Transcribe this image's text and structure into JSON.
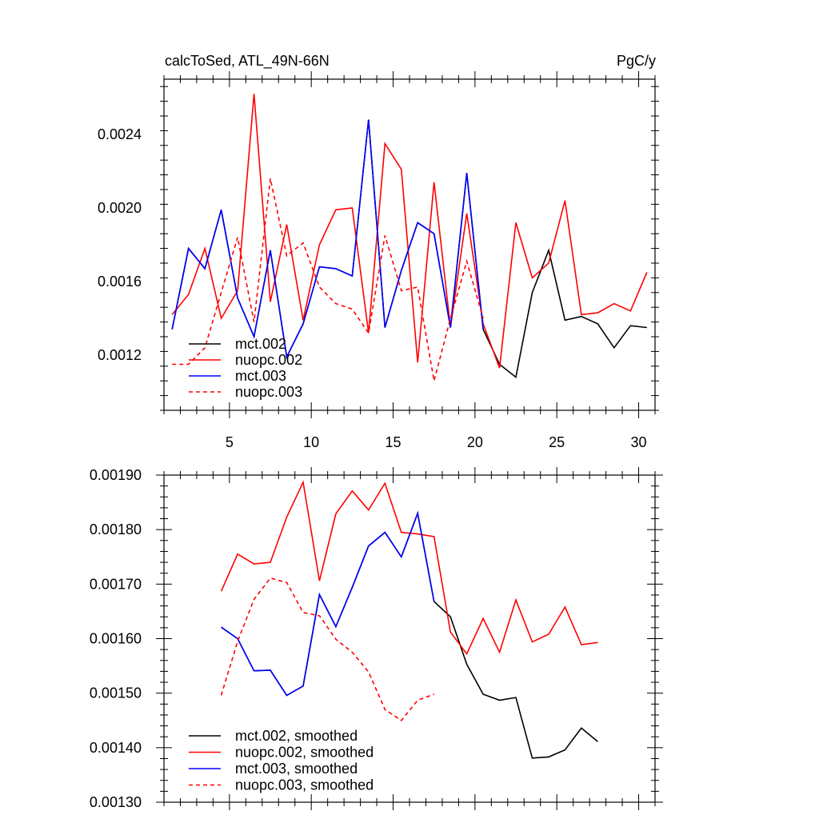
{
  "chart_data": [
    {
      "type": "line",
      "title_left": "calcToSed, ATL_49N-66N",
      "title_right": "PgC/y",
      "xlabel": "",
      "ylabel": "",
      "xlim": [
        1,
        31
      ],
      "ylim": [
        0.0009,
        0.0027
      ],
      "x_ticks": [
        5,
        10,
        15,
        20,
        25,
        30
      ],
      "x_tick_labels": [
        "5",
        "10",
        "15",
        "20",
        "25",
        "30"
      ],
      "y_ticks": [
        0.0012,
        0.0016,
        0.002,
        0.0024
      ],
      "y_tick_labels": [
        "0.0012",
        "0.0016",
        "0.0020",
        "0.0024"
      ],
      "legend_position": "bottom-left",
      "series": [
        {
          "name": "mct.002",
          "color": "#000000",
          "dash": "solid",
          "x": [
            1.5,
            2.5,
            3.5,
            4.5,
            5.5,
            6.5,
            7.5,
            8.5,
            9.5,
            10.5,
            11.5,
            12.5,
            13.5,
            14.5,
            15.5,
            16.5,
            17.5,
            18.5,
            19.5,
            20.5,
            21.5,
            22.5,
            23.5,
            24.5,
            25.5,
            26.5,
            27.5,
            28.5,
            29.5,
            30.5
          ],
          "values": [
            0.00134,
            0.00178,
            0.00167,
            0.00199,
            0.00151,
            0.0013,
            0.00177,
            0.00119,
            0.00137,
            0.00168,
            0.00167,
            0.00163,
            0.00248,
            0.00135,
            0.00166,
            0.00192,
            0.00186,
            0.00135,
            0.00219,
            0.00134,
            0.00115,
            0.00108,
            0.00154,
            0.00177,
            0.00139,
            0.00141,
            0.00137,
            0.00124,
            0.00136,
            0.00135
          ]
        },
        {
          "name": "nuopc.002",
          "color": "#ff0000",
          "dash": "solid",
          "x": [
            1.5,
            2.5,
            3.5,
            4.5,
            5.5,
            6.5,
            7.5,
            8.5,
            9.5,
            10.5,
            11.5,
            12.5,
            13.5,
            14.5,
            15.5,
            16.5,
            17.5,
            18.5,
            19.5,
            20.5,
            21.5,
            22.5,
            23.5,
            24.5,
            25.5,
            26.5,
            27.5,
            28.5,
            29.5,
            30.5
          ],
          "values": [
            0.00142,
            0.00153,
            0.00178,
            0.0014,
            0.00155,
            0.00262,
            0.00149,
            0.00191,
            0.00139,
            0.0018,
            0.00199,
            0.002,
            0.00132,
            0.00235,
            0.00221,
            0.00116,
            0.00214,
            0.00135,
            0.00197,
            0.00137,
            0.00113,
            0.00192,
            0.00162,
            0.0017,
            0.00204,
            0.00142,
            0.00143,
            0.00148,
            0.00144,
            0.00165
          ]
        },
        {
          "name": "mct.003",
          "color": "#0000ff",
          "dash": "solid",
          "x": [
            1.5,
            2.5,
            3.5,
            4.5,
            5.5,
            6.5,
            7.5,
            8.5,
            9.5,
            10.5,
            11.5,
            12.5,
            13.5,
            14.5,
            15.5,
            16.5,
            17.5,
            18.5,
            19.5,
            20.5
          ],
          "values": [
            0.00134,
            0.00178,
            0.00167,
            0.00199,
            0.00151,
            0.0013,
            0.00177,
            0.00119,
            0.00137,
            0.00168,
            0.00167,
            0.00163,
            0.00248,
            0.00135,
            0.00166,
            0.00192,
            0.00186,
            0.00135,
            0.00219,
            0.00134
          ]
        },
        {
          "name": "nuopc.003",
          "color": "#ff0000",
          "dash": "dashed",
          "x": [
            1.5,
            2.5,
            3.5,
            4.5,
            5.5,
            6.5,
            7.5,
            8.5,
            9.5,
            10.5,
            11.5,
            12.5,
            13.5,
            14.5,
            15.5,
            16.5,
            17.5,
            18.5,
            19.5,
            20.5
          ],
          "values": [
            0.00115,
            0.00115,
            0.00124,
            0.00154,
            0.00184,
            0.00138,
            0.00216,
            0.00174,
            0.00181,
            0.00157,
            0.00148,
            0.00145,
            0.00132,
            0.00185,
            0.00155,
            0.00157,
            0.00106,
            0.0014,
            0.00171,
            0.0014
          ]
        }
      ]
    },
    {
      "type": "line",
      "title": "",
      "xlabel": "",
      "ylabel": "",
      "xlim": [
        1,
        31
      ],
      "ylim": [
        0.0013,
        0.0019
      ],
      "x_ticks": [
        5,
        10,
        15,
        20,
        25,
        30
      ],
      "x_tick_labels": [],
      "y_ticks": [
        0.0013,
        0.0014,
        0.0015,
        0.0016,
        0.0017,
        0.0018,
        0.0019
      ],
      "y_tick_labels": [
        "0.00130",
        "0.00140",
        "0.00150",
        "0.00160",
        "0.00170",
        "0.00180",
        "0.00190"
      ],
      "legend_position": "bottom-left",
      "series": [
        {
          "name": "mct.002, smoothed",
          "color": "#000000",
          "dash": "solid",
          "x": [
            4.5,
            5.5,
            6.5,
            7.5,
            8.5,
            9.5,
            10.5,
            11.5,
            12.5,
            13.5,
            14.5,
            15.5,
            16.5,
            17.5,
            18.5,
            19.5,
            20.5,
            21.5,
            22.5,
            23.5,
            24.5,
            25.5,
            26.5,
            27.5
          ],
          "values": [
            0.001621,
            0.0016,
            0.001541,
            0.001542,
            0.001496,
            0.001513,
            0.001681,
            0.001622,
            0.001694,
            0.00177,
            0.001795,
            0.00175,
            0.00183,
            0.001668,
            0.00164,
            0.001553,
            0.001498,
            0.001487,
            0.001492,
            0.001381,
            0.001383,
            0.001396,
            0.001436,
            0.001411
          ]
        },
        {
          "name": "nuopc.002, smoothed",
          "color": "#ff0000",
          "dash": "solid",
          "x": [
            4.5,
            5.5,
            6.5,
            7.5,
            8.5,
            9.5,
            10.5,
            11.5,
            12.5,
            13.5,
            14.5,
            15.5,
            16.5,
            17.5,
            18.5,
            19.5,
            20.5,
            21.5,
            22.5,
            23.5,
            24.5,
            25.5,
            26.5,
            27.5
          ],
          "values": [
            0.001687,
            0.001755,
            0.001737,
            0.00174,
            0.001823,
            0.001887,
            0.001706,
            0.001829,
            0.001871,
            0.001836,
            0.001885,
            0.001795,
            0.001792,
            0.001787,
            0.001612,
            0.001572,
            0.001637,
            0.001575,
            0.001671,
            0.001594,
            0.001608,
            0.001658,
            0.001589,
            0.001593
          ]
        },
        {
          "name": "mct.003, smoothed",
          "color": "#0000ff",
          "dash": "solid",
          "x": [
            4.5,
            5.5,
            6.5,
            7.5,
            8.5,
            9.5,
            10.5,
            11.5,
            12.5,
            13.5,
            14.5,
            15.5,
            16.5,
            17.5
          ],
          "values": [
            0.001621,
            0.0016,
            0.001541,
            0.001542,
            0.001496,
            0.001513,
            0.001681,
            0.001622,
            0.001694,
            0.00177,
            0.001795,
            0.00175,
            0.00183,
            0.001668
          ]
        },
        {
          "name": "nuopc.003, smoothed",
          "color": "#ff0000",
          "dash": "dashed",
          "x": [
            4.5,
            5.5,
            6.5,
            7.5,
            8.5,
            9.5,
            10.5,
            11.5,
            12.5,
            13.5,
            14.5,
            15.5,
            16.5,
            17.5
          ],
          "values": [
            0.001496,
            0.001595,
            0.001672,
            0.001711,
            0.001703,
            0.001648,
            0.001642,
            0.001599,
            0.001575,
            0.001539,
            0.00147,
            0.00145,
            0.001487,
            0.001498
          ]
        }
      ]
    }
  ]
}
